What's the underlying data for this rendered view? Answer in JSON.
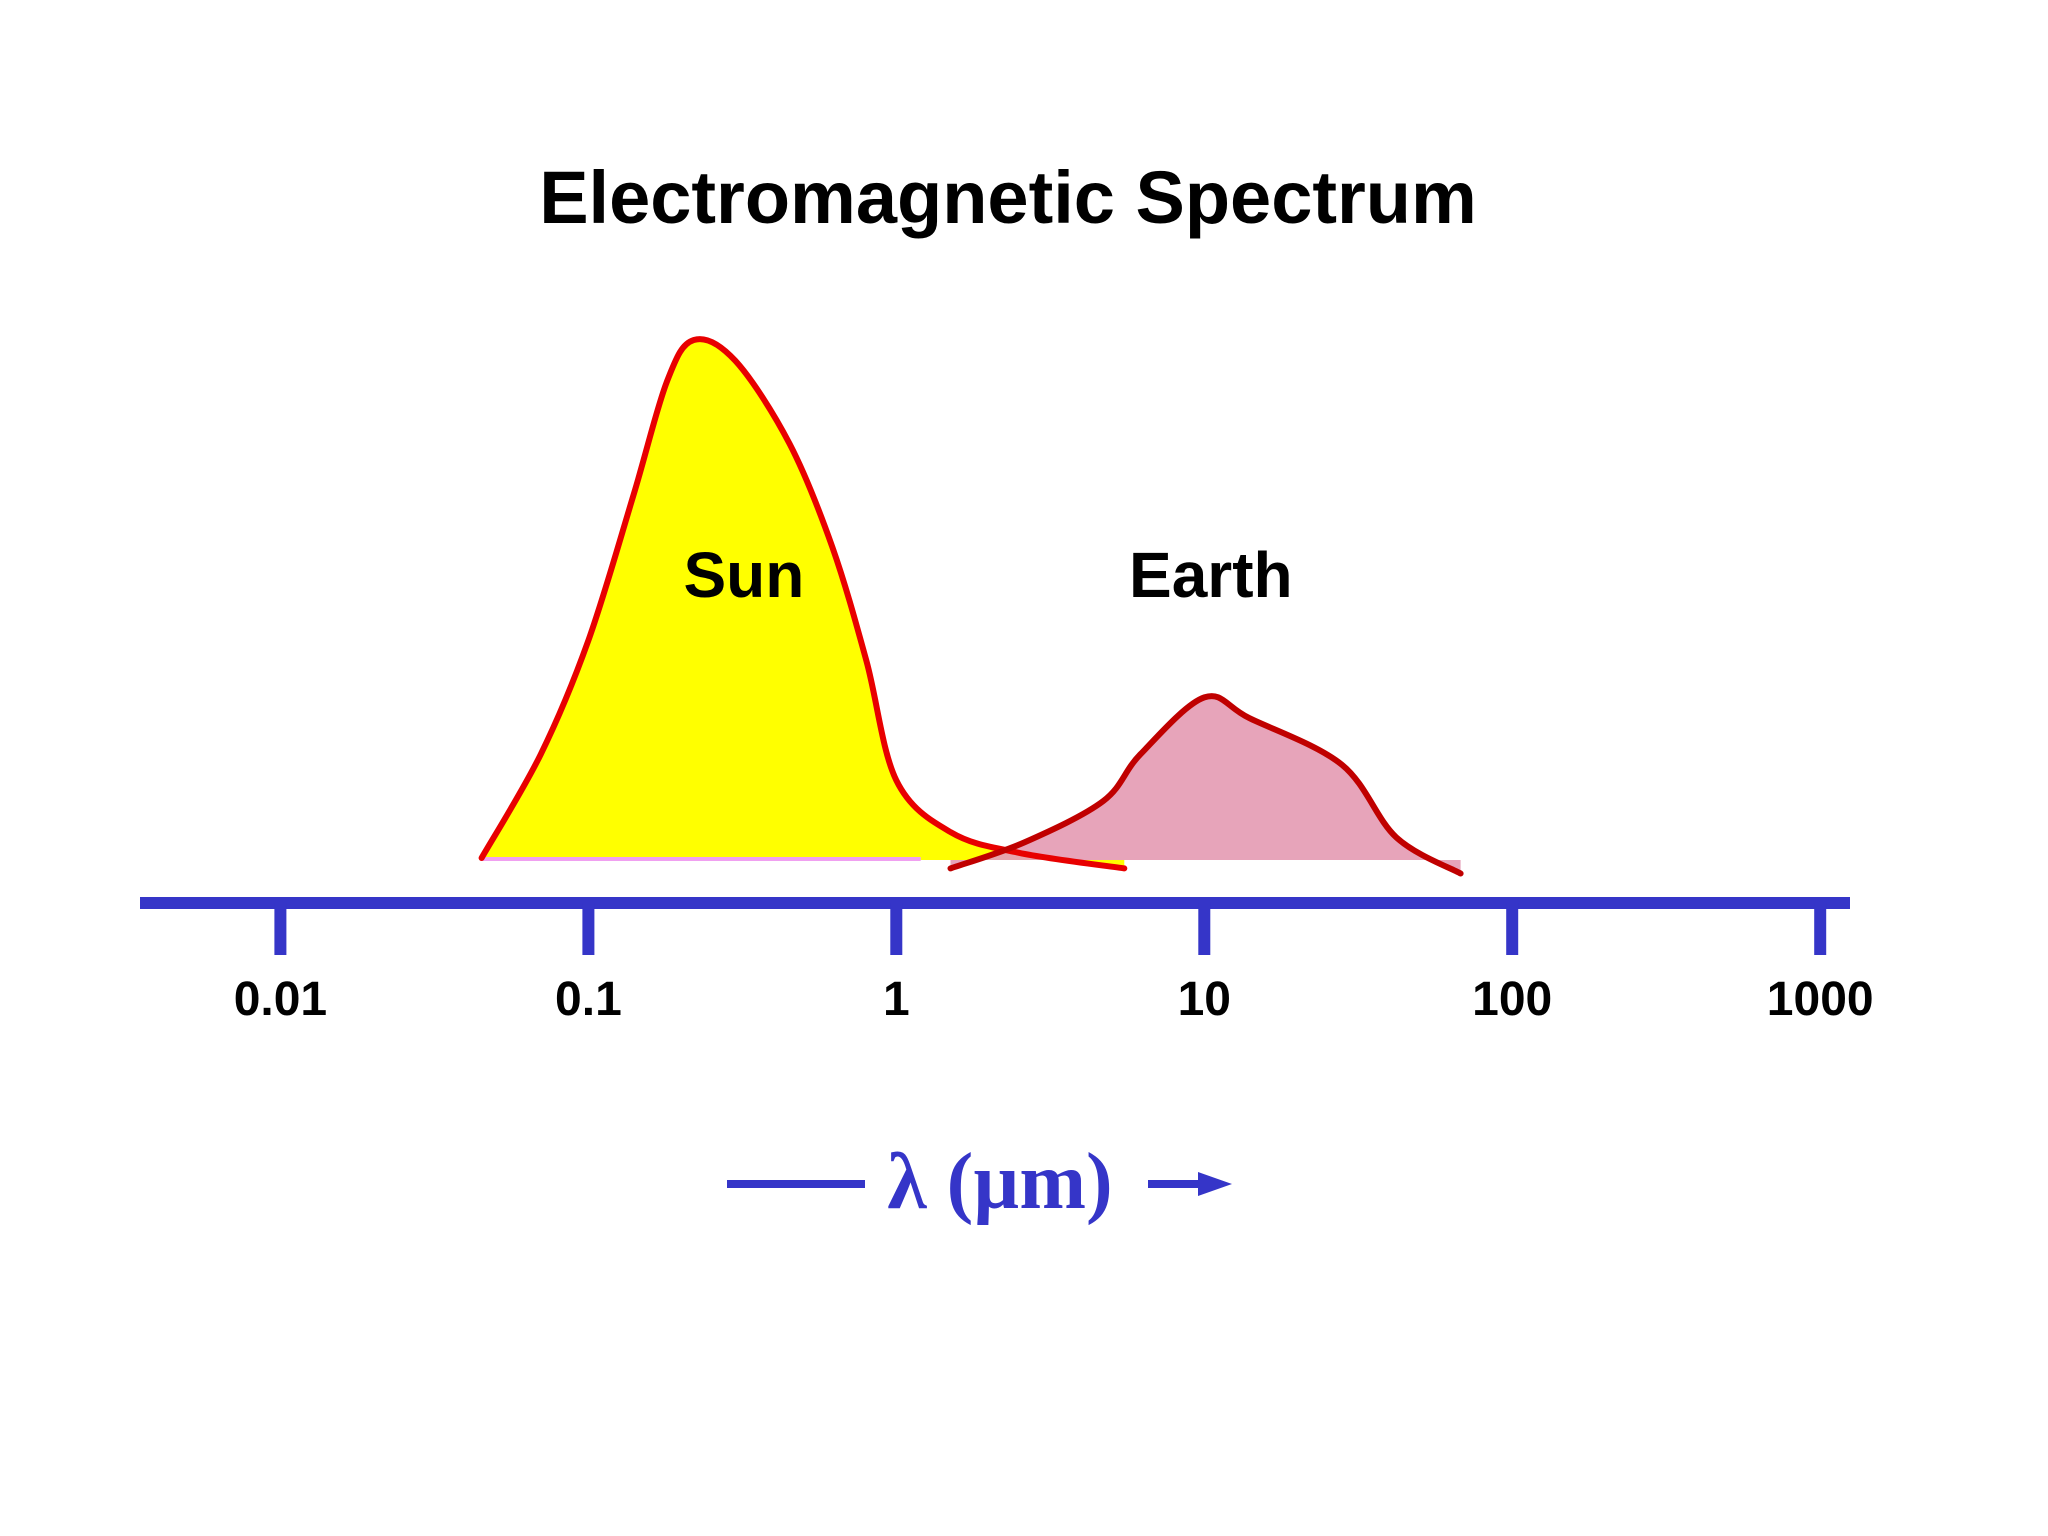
{
  "chart_data": {
    "type": "area",
    "title": "Electromagnetic Spectrum",
    "xlabel": "λ (µm)",
    "ylabel": "",
    "x_scale": "log",
    "xlim": [
      0.0035,
      1250
    ],
    "x_ticks": [
      0.01,
      0.1,
      1,
      10,
      100,
      1000
    ],
    "x_tick_labels": [
      "0.01",
      "0.1",
      "1",
      "10",
      "100",
      "1000"
    ],
    "y_axis_shown": false,
    "ylim": [
      0,
      1
    ],
    "grid": false,
    "legend": "none",
    "axis_color": "#3535c8",
    "series": [
      {
        "name": "Sun",
        "fill": "#ffff00",
        "stroke": "#e80000",
        "points": [
          [
            0.045,
            0.0
          ],
          [
            0.07,
            0.2
          ],
          [
            0.1,
            0.42
          ],
          [
            0.14,
            0.7
          ],
          [
            0.18,
            0.92
          ],
          [
            0.22,
            1.0
          ],
          [
            0.3,
            0.96
          ],
          [
            0.45,
            0.8
          ],
          [
            0.62,
            0.6
          ],
          [
            0.8,
            0.38
          ],
          [
            1.0,
            0.15
          ],
          [
            1.5,
            0.05
          ],
          [
            2.5,
            0.01
          ],
          [
            5.5,
            -0.02
          ]
        ]
      },
      {
        "name": "Earth",
        "fill": "#e69fb6",
        "stroke": "#c00000",
        "points": [
          [
            1.5,
            -0.02
          ],
          [
            2.6,
            0.03
          ],
          [
            4.7,
            0.11
          ],
          [
            6.2,
            0.2
          ],
          [
            10.0,
            0.31
          ],
          [
            14.0,
            0.27
          ],
          [
            28.0,
            0.18
          ],
          [
            42.0,
            0.04
          ],
          [
            68.0,
            -0.03
          ]
        ]
      }
    ]
  }
}
